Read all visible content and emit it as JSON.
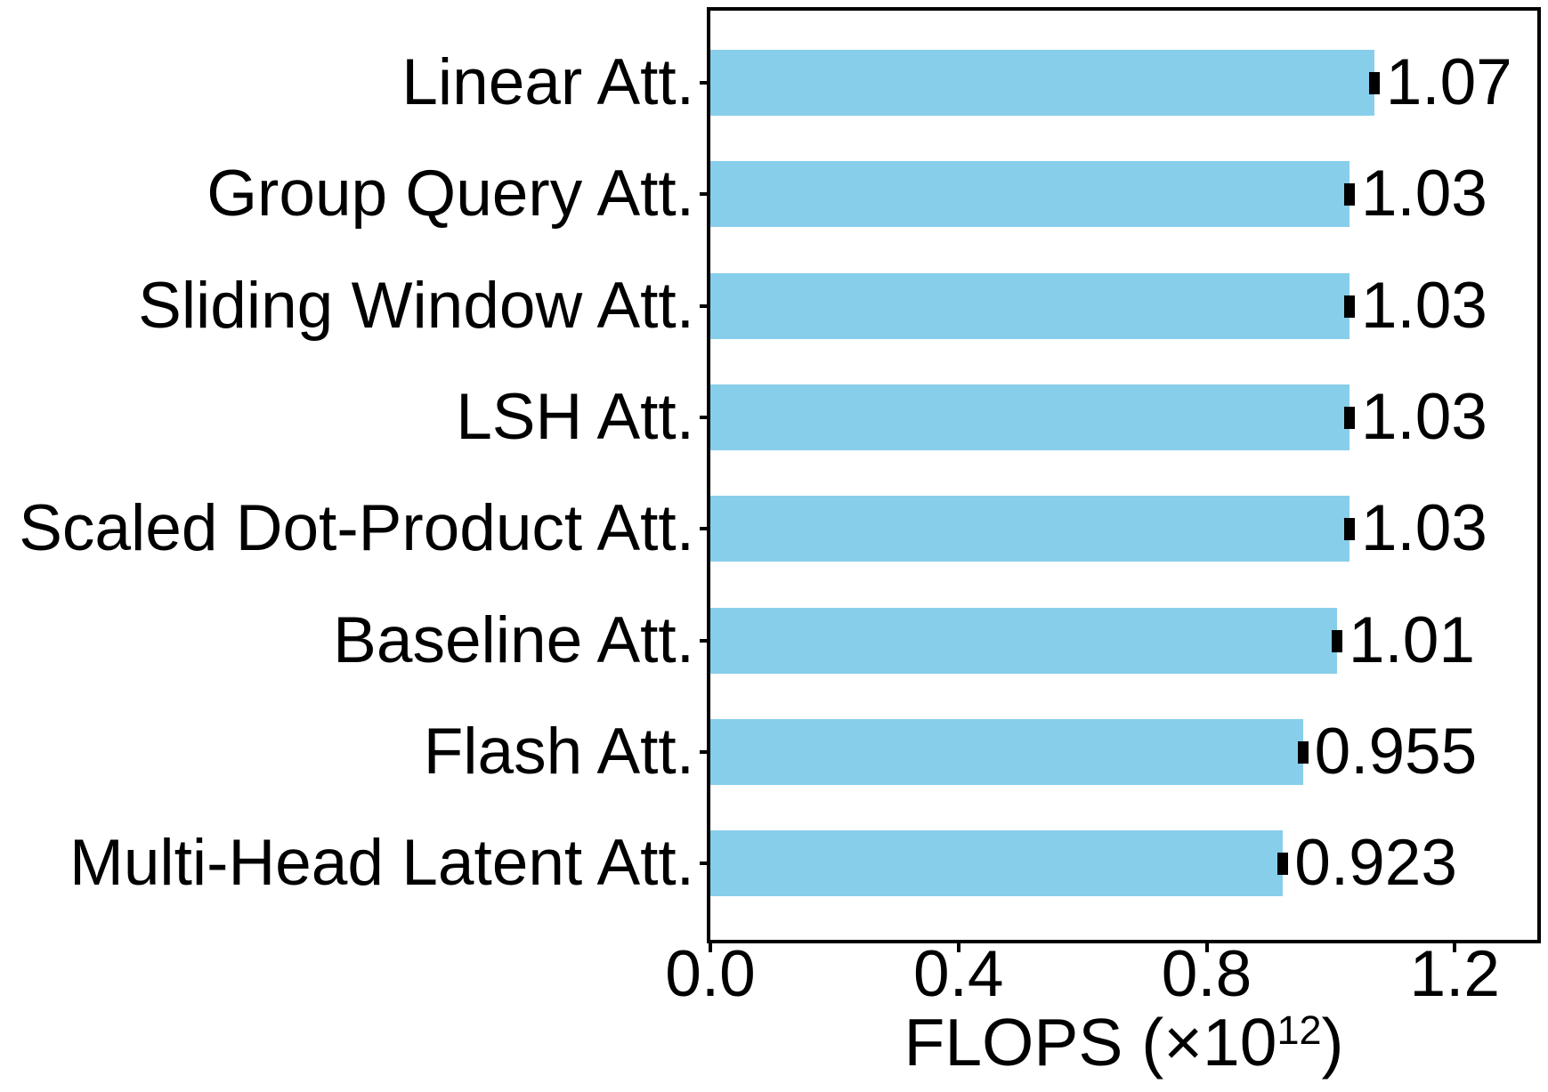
{
  "chart_data": {
    "type": "bar",
    "orientation": "horizontal",
    "title": "",
    "categories": [
      "Linear Att.",
      "Group Query Att.",
      "Sliding Window Att.",
      "LSH Att.",
      "Scaled Dot-Product Att.",
      "Baseline Att.",
      "Flash Att.",
      "Multi-Head Latent Att."
    ],
    "values": [
      1.07,
      1.03,
      1.03,
      1.03,
      1.03,
      1.01,
      0.955,
      0.923
    ],
    "value_labels": [
      "1.07",
      "1.03",
      "1.03",
      "1.03",
      "1.03",
      "1.01",
      "0.955",
      "0.923"
    ],
    "has_error_bars": true,
    "xlabel": "FLOPS (×10¹²)",
    "xlabel_parts": {
      "base": "FLOPS (×10",
      "sup": "12",
      "close": ")"
    },
    "x_tick_labels": [
      "0.0",
      "0.4",
      "0.8",
      "1.2"
    ],
    "x_tick_values": [
      0.0,
      0.4,
      0.8,
      1.2
    ],
    "xlim": [
      0,
      1.333
    ],
    "ylabel": "",
    "grid": false,
    "legend": null,
    "bar_color": "#87CEEB",
    "error_bar_color": "#000000",
    "axis_color": "#000000",
    "text_color": "#000000",
    "background_color": "#ffffff"
  }
}
